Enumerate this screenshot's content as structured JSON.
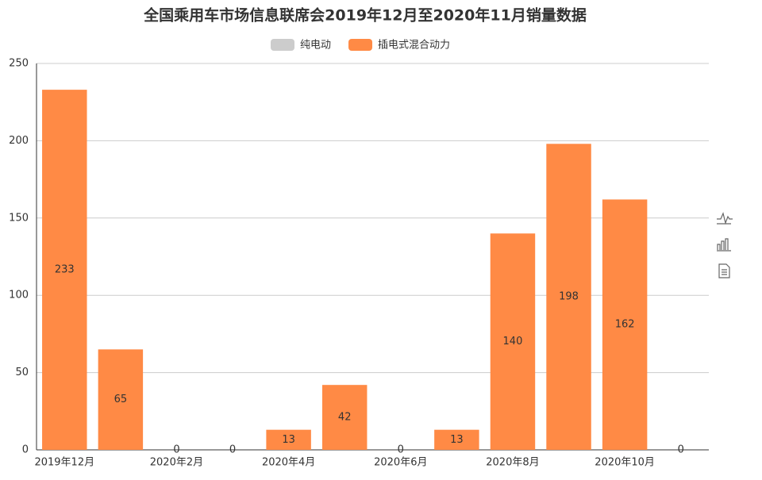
{
  "chart_data": {
    "type": "bar",
    "title": "全国乘用车市场信息联席会2019年12月至2020年11月销量数据",
    "categories": [
      "2019年12月",
      null,
      "2020年2月",
      null,
      "2020年4月",
      null,
      "2020年6月",
      null,
      "2020年8月",
      null,
      "2020年10月",
      null
    ],
    "series": [
      {
        "name": "纯电动",
        "color": "#cccccc",
        "hidden": true
      },
      {
        "name": "插电式混合动力",
        "color": "#ff8a45",
        "values": [
          233,
          65,
          0,
          0,
          13,
          42,
          0,
          13,
          140,
          198,
          162,
          0
        ]
      }
    ],
    "ylim": [
      0,
      250
    ],
    "yticks": [
      0,
      50,
      100,
      150,
      200,
      250
    ],
    "grid": true,
    "value_labels_shown": true,
    "legend": "top"
  }
}
